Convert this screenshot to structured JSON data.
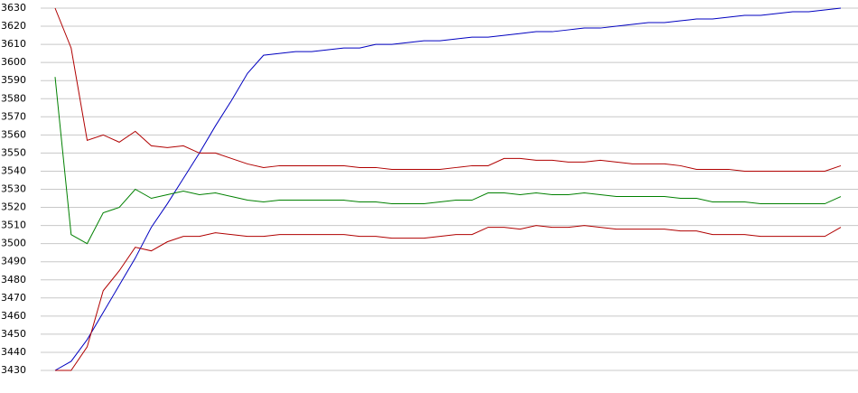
{
  "chart_data": {
    "type": "line",
    "categories": [
      null,
      null,
      null,
      null,
      null,
      null,
      null,
      null,
      null,
      null,
      null,
      null,
      null,
      null,
      null,
      null,
      null,
      null,
      null,
      null,
      null,
      null,
      null,
      null,
      null,
      null,
      null,
      null,
      null,
      null,
      null,
      null,
      null,
      null,
      null,
      null,
      null,
      null,
      null,
      null,
      null,
      null,
      null,
      null,
      null,
      null,
      null,
      null,
      null,
      null
    ],
    "series": [
      {
        "color": "#0000c0",
        "values": [
          3430,
          3435,
          3447,
          3462,
          3477,
          3492,
          3509,
          3522,
          3536,
          3550,
          3565,
          3579,
          3594,
          3604,
          3605,
          3606,
          3606,
          3607,
          3608,
          3608,
          3610,
          3610,
          3611,
          3612,
          3612,
          3613,
          3614,
          3614,
          3615,
          3616,
          3617,
          3617,
          3618,
          3619,
          3619,
          3620,
          3621,
          3622,
          3622,
          3623,
          3624,
          3624,
          3625,
          3626,
          3626,
          3627,
          3628,
          3628,
          3629,
          3630
        ]
      },
      {
        "color": "#b00000",
        "values": [
          3630,
          3608,
          3557,
          3560,
          3556,
          3562,
          3554,
          3553,
          3554,
          3550,
          3550,
          3547,
          3544,
          3542,
          3543,
          3543,
          3543,
          3543,
          3543,
          3542,
          3542,
          3541,
          3541,
          3541,
          3541,
          3542,
          3543,
          3543,
          3547,
          3547,
          3546,
          3546,
          3545,
          3545,
          3546,
          3545,
          3544,
          3544,
          3544,
          3543,
          3541,
          3541,
          3541,
          3540,
          3540,
          3540,
          3540,
          3540,
          3540,
          3543
        ]
      },
      {
        "color": "#008000",
        "values": [
          3592,
          3505,
          3500,
          3517,
          3520,
          3530,
          3525,
          3527,
          3529,
          3527,
          3528,
          3526,
          3524,
          3523,
          3524,
          3524,
          3524,
          3524,
          3524,
          3523,
          3523,
          3522,
          3522,
          3522,
          3523,
          3524,
          3524,
          3528,
          3528,
          3527,
          3528,
          3527,
          3527,
          3528,
          3527,
          3526,
          3526,
          3526,
          3526,
          3525,
          3525,
          3523,
          3523,
          3523,
          3522,
          3522,
          3522,
          3522,
          3522,
          3526
        ]
      },
      {
        "color": "#b00000",
        "values": [
          3430,
          3430,
          3443,
          3474,
          3485,
          3498,
          3496,
          3501,
          3504,
          3504,
          3506,
          3505,
          3504,
          3504,
          3505,
          3505,
          3505,
          3505,
          3505,
          3504,
          3504,
          3503,
          3503,
          3503,
          3504,
          3505,
          3505,
          3509,
          3509,
          3508,
          3510,
          3509,
          3509,
          3510,
          3509,
          3508,
          3508,
          3508,
          3508,
          3507,
          3507,
          3505,
          3505,
          3505,
          3504,
          3504,
          3504,
          3504,
          3504,
          3509
        ]
      }
    ],
    "ylim": [
      3430,
      3630
    ],
    "yticks": [
      3430,
      3440,
      3450,
      3460,
      3470,
      3480,
      3490,
      3500,
      3510,
      3520,
      3530,
      3540,
      3550,
      3560,
      3570,
      3580,
      3590,
      3600,
      3610,
      3620,
      3630
    ],
    "grid": true
  }
}
